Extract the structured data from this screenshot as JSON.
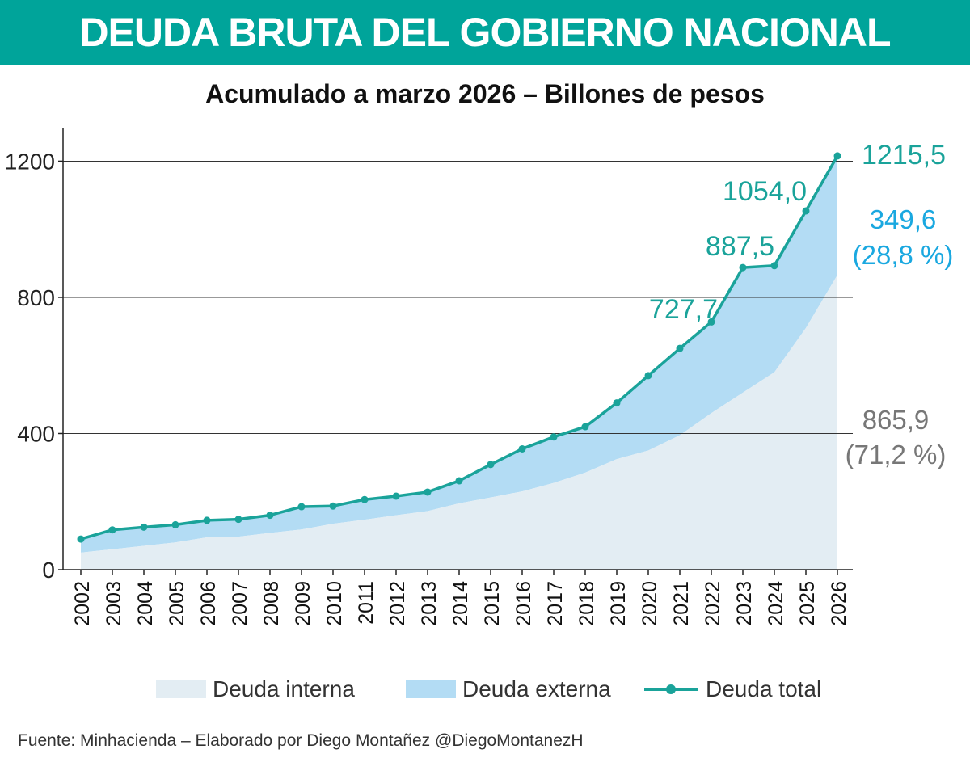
{
  "header": {
    "title": "DEUDA BRUTA DEL GOBIERNO NACIONAL",
    "subtitle": "Acumulado a marzo 2026 – Billones de pesos"
  },
  "chart_data": {
    "type": "area",
    "title": "DEUDA BRUTA DEL GOBIERNO NACIONAL",
    "subtitle": "Acumulado a marzo 2026 – Billones de pesos",
    "xlabel": "",
    "ylabel": "",
    "ylim": [
      0,
      1300
    ],
    "yticks": [
      0,
      400,
      800,
      1200
    ],
    "grid": true,
    "legend_position": "bottom",
    "categories": [
      "2002",
      "2003",
      "2004",
      "2005",
      "2006",
      "2007",
      "2008",
      "2009",
      "2010",
      "2011",
      "2012",
      "2013",
      "2014",
      "2015",
      "2016",
      "2017",
      "2018",
      "2019",
      "2020",
      "2021",
      "2022",
      "2023",
      "2024",
      "2025",
      "2026"
    ],
    "series": [
      {
        "name": "Deuda interna",
        "type": "area",
        "color": "#e3edf3",
        "values": [
          50,
          60,
          70,
          80,
          95,
          97,
          108,
          118,
          135,
          147,
          160,
          172,
          195,
          212,
          230,
          255,
          285,
          325,
          350,
          395,
          460,
          520,
          580,
          710,
          865.9
        ]
      },
      {
        "name": "Deuda externa",
        "type": "area",
        "color": "#b3dcf4",
        "values": [
          40,
          57,
          55,
          52,
          50,
          51,
          52,
          67,
          52,
          59,
          56,
          56,
          66,
          97,
          125,
          135,
          135,
          165,
          220,
          255,
          267.7,
          367.5,
          313,
          344,
          349.6
        ]
      },
      {
        "name": "Deuda total",
        "type": "line",
        "color": "#1aa39a",
        "values": [
          90,
          117,
          125,
          132,
          145,
          148,
          160,
          185,
          187,
          206,
          216,
          228,
          261,
          309,
          355,
          390,
          420,
          490,
          570,
          650,
          727.7,
          887.5,
          893,
          1054.0,
          1215.5
        ]
      }
    ],
    "annotations": [
      {
        "text": "1215,5",
        "category": "2026",
        "series": "Deuda total",
        "color": "#1aa39a"
      },
      {
        "text": "1054,0",
        "category": "2025",
        "series": "Deuda total",
        "color": "#1aa39a"
      },
      {
        "text": "887,5",
        "category": "2023",
        "series": "Deuda total",
        "color": "#1aa39a"
      },
      {
        "text": "727,7",
        "category": "2022",
        "series": "Deuda total",
        "color": "#1aa39a"
      },
      {
        "text": "349,6",
        "category": "2026",
        "series": "Deuda externa",
        "color": "#1aa8e0"
      },
      {
        "text": "(28,8 %)",
        "category": "2026",
        "series": "Deuda externa",
        "color": "#1aa8e0"
      },
      {
        "text": "865,9",
        "category": "2026",
        "series": "Deuda interna",
        "color": "#777777"
      },
      {
        "text": "(71,2 %)",
        "category": "2026",
        "series": "Deuda interna",
        "color": "#777777"
      }
    ]
  },
  "legend": {
    "items": [
      {
        "label": "Deuda interna"
      },
      {
        "label": "Deuda externa"
      },
      {
        "label": "Deuda total"
      }
    ]
  },
  "footer": {
    "source": "Fuente: Minhacienda – Elaborado por Diego Montañez @DiegoMontanezH"
  },
  "colors": {
    "banner": "#00a49a",
    "total_line": "#1aa39a",
    "externa_fill": "#b3dcf4",
    "interna_fill": "#e3edf3"
  }
}
